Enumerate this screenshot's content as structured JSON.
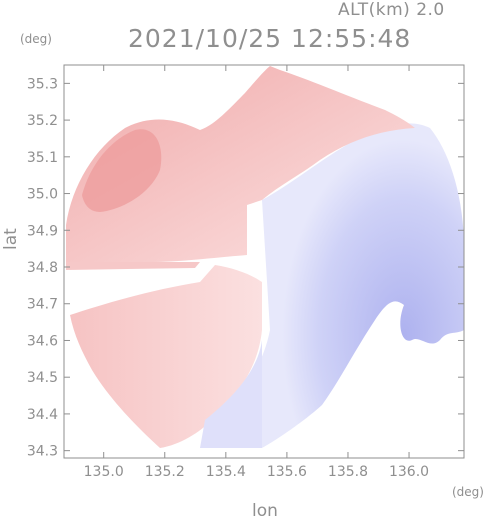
{
  "header": {
    "altitude_label": "ALT(km) 2.0",
    "timestamp": "2021/10/25 12:55:48"
  },
  "axes": {
    "y_unit": "(deg)",
    "x_unit": "(deg)",
    "ylabel": "lat",
    "xlabel": "lon"
  },
  "chart_data": {
    "type": "heatmap",
    "title": "2021/10/25 12:55:48",
    "subtitle": "ALT(km) 2.0",
    "xlabel": "lon",
    "ylabel": "lat",
    "x_unit": "(deg)",
    "y_unit": "(deg)",
    "xlim": [
      134.87,
      136.18
    ],
    "ylim": [
      34.28,
      35.35
    ],
    "x_ticks": [
      135.0,
      135.2,
      135.4,
      135.6,
      135.8,
      136.0
    ],
    "y_ticks": [
      34.3,
      34.4,
      34.5,
      34.6,
      34.7,
      34.8,
      34.9,
      35.0,
      35.1,
      35.2,
      35.3
    ],
    "x_tick_labels": [
      "135.0",
      "135.2",
      "135.4",
      "135.6",
      "135.8",
      "136.0"
    ],
    "y_tick_labels": [
      "34.3",
      "34.4",
      "34.5",
      "34.6",
      "34.7",
      "34.8",
      "34.9",
      "35.0",
      "35.1",
      "35.2",
      "35.3"
    ],
    "grid": false,
    "legend": "none",
    "colors": {
      "positive": "#f5c4c4",
      "positive_strong": "#ec9d9d",
      "zero": "#ffffff",
      "negative": "#d7d9f7",
      "negative_strong": "#b8bcf0",
      "axis": "#8f8f8f"
    }
  }
}
